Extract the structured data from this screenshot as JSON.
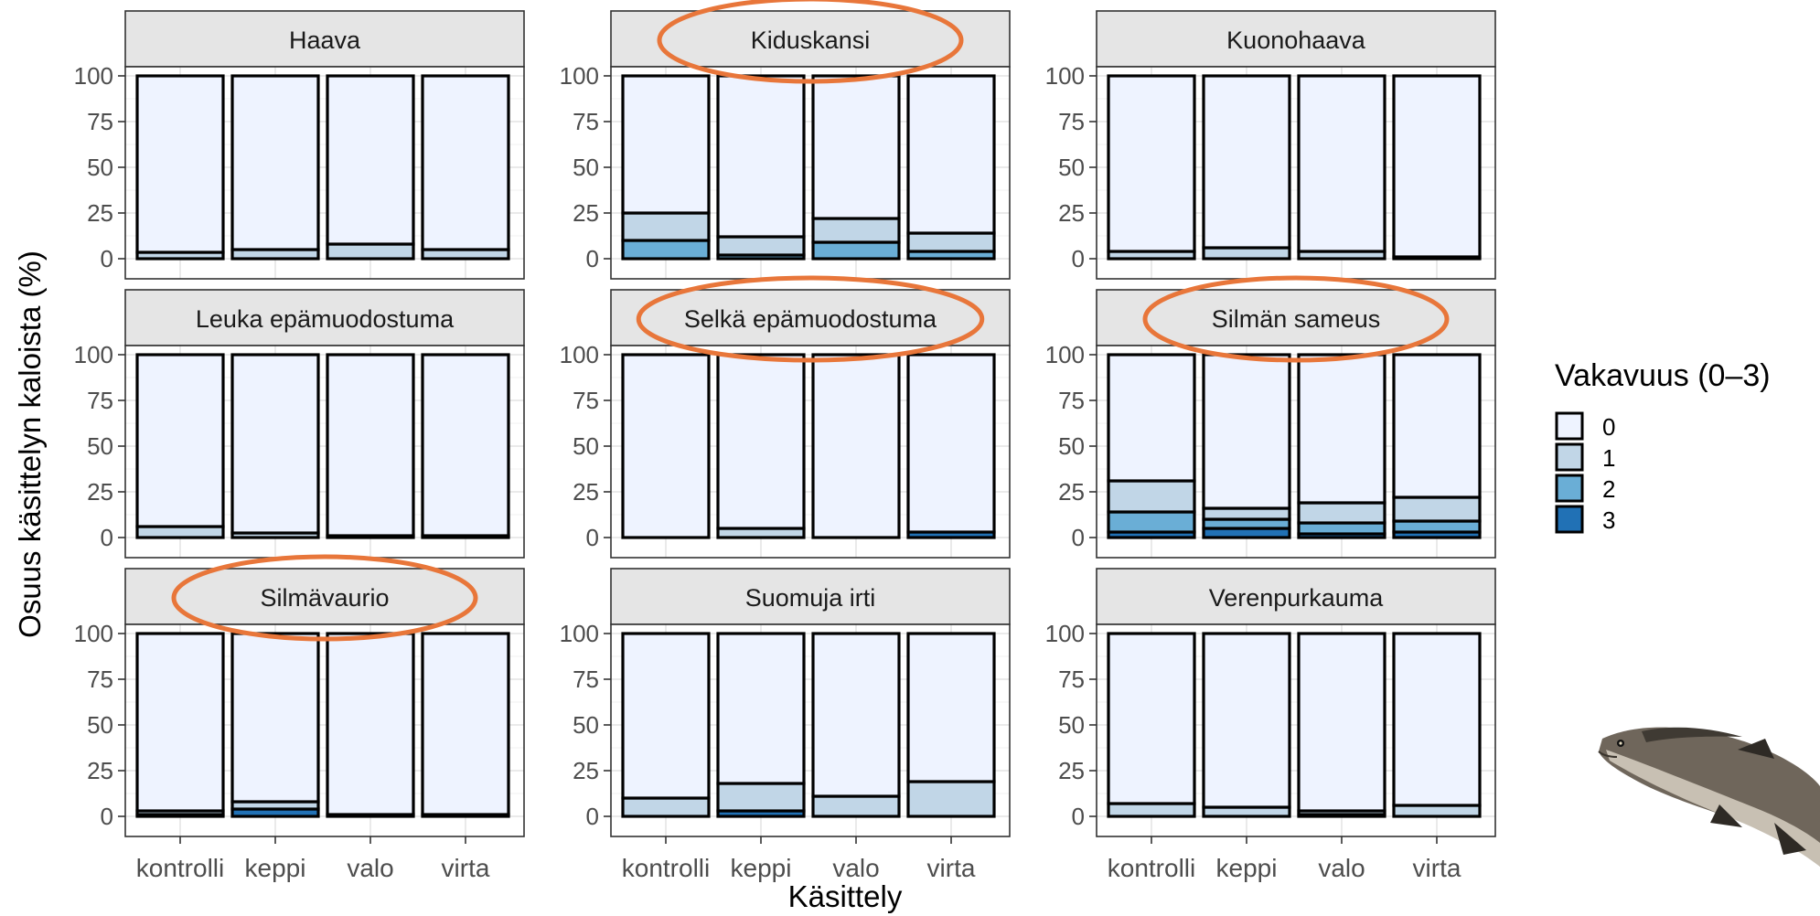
{
  "chart_data": {
    "type": "bar",
    "stacked": true,
    "xlabel": "Käsittely",
    "ylabel": "Osuus käsittelyn kaloista (%)",
    "ylim": [
      0,
      100
    ],
    "yticks": [
      "0",
      "25",
      "50",
      "75",
      "100"
    ],
    "categories": [
      "kontrolli",
      "keppi",
      "valo",
      "virta"
    ],
    "legend": {
      "title": "Vakavuus (0–3)",
      "position": "right",
      "levels": [
        "0",
        "1",
        "2",
        "3"
      ],
      "colors": [
        "#EEF3FF",
        "#C1D6E7",
        "#6AAED6",
        "#2171B5"
      ]
    },
    "highlight_color": "#E8763A",
    "grid": true,
    "panels": [
      {
        "title": "Haava",
        "highlighted": false,
        "bars": [
          [
            96.5,
            3.5,
            0,
            0
          ],
          [
            95,
            5,
            0,
            0
          ],
          [
            92,
            8,
            0,
            0
          ],
          [
            95,
            5,
            0,
            0
          ]
        ]
      },
      {
        "title": "Kiduskansi",
        "highlighted": true,
        "bars": [
          [
            75,
            15,
            10,
            0
          ],
          [
            88,
            10,
            2,
            0
          ],
          [
            78,
            13,
            9,
            0
          ],
          [
            86,
            10,
            4,
            0
          ]
        ]
      },
      {
        "title": "Kuonohaava",
        "highlighted": false,
        "bars": [
          [
            96,
            4,
            0,
            0
          ],
          [
            94,
            6,
            0,
            0
          ],
          [
            96,
            4,
            0,
            0
          ],
          [
            99,
            1,
            0,
            0
          ]
        ]
      },
      {
        "title": "Leuka epämuodostuma",
        "highlighted": false,
        "bars": [
          [
            94,
            6,
            0,
            0
          ],
          [
            97.5,
            2.5,
            0,
            0
          ],
          [
            99,
            1,
            0,
            0
          ],
          [
            99,
            1,
            0,
            0
          ]
        ]
      },
      {
        "title": "Selkä epämuodostuma",
        "highlighted": true,
        "bars": [
          [
            100,
            0,
            0,
            0
          ],
          [
            95,
            5,
            0,
            0
          ],
          [
            100,
            0,
            0,
            0
          ],
          [
            97,
            0,
            0,
            3
          ]
        ]
      },
      {
        "title": "Silmän sameus",
        "highlighted": true,
        "bars": [
          [
            69,
            17,
            11,
            3
          ],
          [
            84,
            6,
            5,
            5
          ],
          [
            81,
            11,
            6,
            2
          ],
          [
            78,
            13,
            6,
            3
          ]
        ]
      },
      {
        "title": "Silmävaurio",
        "highlighted": true,
        "bars": [
          [
            97,
            2,
            1,
            0
          ],
          [
            92,
            4,
            0,
            4
          ],
          [
            99,
            1,
            0,
            0
          ],
          [
            99,
            1,
            0,
            0
          ]
        ]
      },
      {
        "title": "Suomuja irti",
        "highlighted": false,
        "bars": [
          [
            90,
            10,
            0,
            0
          ],
          [
            82,
            15,
            0,
            3
          ],
          [
            89,
            11,
            0,
            0
          ],
          [
            81,
            19,
            0,
            0
          ]
        ]
      },
      {
        "title": "Verenpurkauma",
        "highlighted": false,
        "bars": [
          [
            93,
            7,
            0,
            0
          ],
          [
            95,
            5,
            0,
            0
          ],
          [
            97,
            2,
            0,
            1
          ],
          [
            94,
            6,
            0,
            0
          ]
        ]
      }
    ]
  }
}
